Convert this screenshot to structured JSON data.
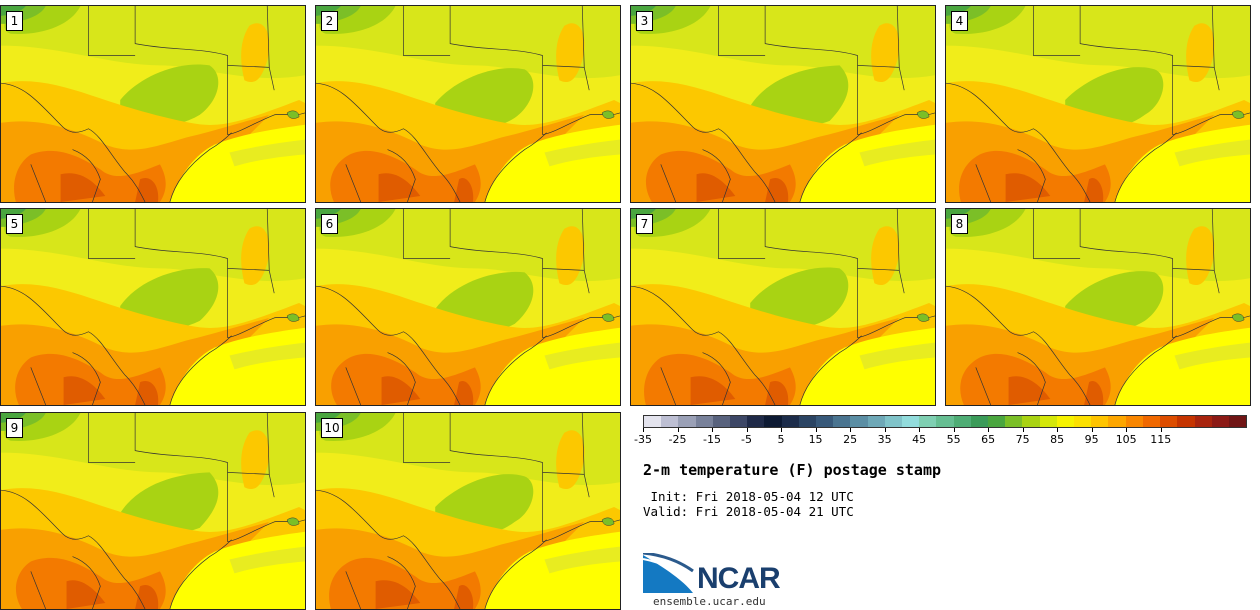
{
  "panels": [
    {
      "label": "1"
    },
    {
      "label": "2"
    },
    {
      "label": "3"
    },
    {
      "label": "4"
    },
    {
      "label": "5"
    },
    {
      "label": "6"
    },
    {
      "label": "7"
    },
    {
      "label": "8"
    },
    {
      "label": "9"
    },
    {
      "label": "10"
    }
  ],
  "colorbar": {
    "colors": [
      "#e4e4ee",
      "#bdbfd3",
      "#9aa0b6",
      "#78819a",
      "#58627d",
      "#3d4766",
      "#1f2a48",
      "#0d1a33",
      "#1c2c4a",
      "#2b4463",
      "#38597a",
      "#4a7490",
      "#5b8ea4",
      "#6ea8b7",
      "#80c3c9",
      "#92dcdc",
      "#7fcfb2",
      "#66be92",
      "#4fad75",
      "#3b9b59",
      "#4aa63f",
      "#7bbf27",
      "#a9d313",
      "#d4e70a",
      "#f6f200",
      "#fce000",
      "#ffc400",
      "#fda600",
      "#f98600",
      "#f06800",
      "#dd4d00",
      "#c53400",
      "#a8240e",
      "#8c1a16",
      "#701515"
    ],
    "ticks": [
      "-35",
      "-25",
      "-15",
      "-5",
      "5",
      "15",
      "25",
      "35",
      "45",
      "55",
      "65",
      "75",
      "85",
      "95",
      "105",
      "115"
    ]
  },
  "title": "2-m temperature (F) postage stamp",
  "init_line": " Init: Fri 2018-05-04 12 UTC",
  "valid_line": "Valid: Fri 2018-05-04 21 UTC",
  "logo_text": "NCAR",
  "url": "ensemble.ucar.edu"
}
